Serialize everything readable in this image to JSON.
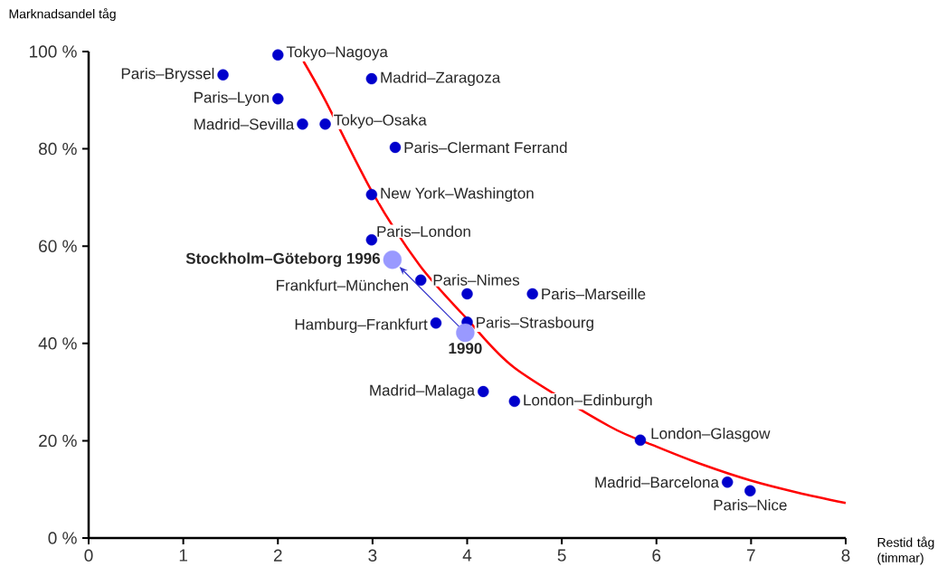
{
  "chart_data": {
    "type": "scatter",
    "xlabel": "Restid tåg (timmar)",
    "ylabel": "Marknadsandel tåg",
    "xlim": [
      0,
      8
    ],
    "ylim": [
      0,
      100
    ],
    "xticks": [
      0,
      1,
      2,
      3,
      4,
      5,
      6,
      7,
      8
    ],
    "yticks": [
      {
        "value": 0,
        "label": "0 %"
      },
      {
        "value": 20,
        "label": "20 %"
      },
      {
        "value": 40,
        "label": "40 %"
      },
      {
        "value": 60,
        "label": "60 %"
      },
      {
        "value": 80,
        "label": "80 %"
      },
      {
        "value": 100,
        "label": "100 %"
      }
    ],
    "grid": false,
    "series": [
      {
        "color": "#0000cc",
        "marker": "circle",
        "x": [
          1.42,
          2.0,
          2.99,
          2.0,
          2.26,
          2.5,
          3.24,
          2.99,
          2.99,
          3.51,
          4.0,
          4.69,
          3.67,
          4.0,
          4.17,
          4.5,
          5.83,
          6.75,
          6.99
        ],
        "values": [
          95.2,
          99.3,
          94.4,
          90.3,
          85.1,
          85.1,
          80.3,
          70.6,
          61.3,
          53.0,
          50.2,
          50.2,
          44.2,
          44.4,
          30.1,
          28.1,
          20.1,
          11.5,
          9.7
        ]
      },
      {
        "color": "#9999ff",
        "marker": "circle",
        "x": [
          3.98,
          3.21
        ],
        "values": [
          42.2,
          57.2
        ]
      },
      {
        "type": "line",
        "color": "#ff0000",
        "line_style": "solid",
        "marker": "none",
        "x": [
          2.27,
          2.5,
          3.0,
          3.5,
          4.0,
          4.5,
          5.5,
          6.0,
          6.5,
          7.0,
          7.5,
          8.0
        ],
        "values": [
          98,
          90,
          71,
          56,
          45,
          35,
          23,
          18.8,
          15,
          11.8,
          9.3,
          7.2
        ]
      }
    ],
    "annotations": [
      {
        "text": "Paris–Bryssel",
        "x": 1.42,
        "y": 95.2
      },
      {
        "text": "Tokyo–Nagoya",
        "x": 2.0,
        "y": 99.3
      },
      {
        "text": "Madrid–Zaragoza",
        "x": 2.99,
        "y": 94.4
      },
      {
        "text": "Paris–Lyon",
        "x": 2.0,
        "y": 90.3
      },
      {
        "text": "Madrid–Sevilla",
        "x": 2.26,
        "y": 85.1
      },
      {
        "text": "Tokyo–Osaka",
        "x": 2.5,
        "y": 85.1
      },
      {
        "text": "Paris–Clermant Ferrand",
        "x": 3.24,
        "y": 80.3
      },
      {
        "text": "New York–Washington",
        "x": 2.99,
        "y": 70.6
      },
      {
        "text": "Paris–London",
        "x": 2.99,
        "y": 61.3
      },
      {
        "text": "Frankfurt–München",
        "x": 3.51,
        "y": 53.0
      },
      {
        "text": "Paris–Nimes",
        "x": 4.0,
        "y": 50.2
      },
      {
        "text": "Paris–Marseille",
        "x": 4.69,
        "y": 50.2
      },
      {
        "text": "Hamburg–Frankfurt",
        "x": 3.67,
        "y": 44.2
      },
      {
        "text": "Paris–Strasbourg",
        "x": 4.0,
        "y": 44.4
      },
      {
        "text": "Madrid–Malaga",
        "x": 4.17,
        "y": 30.1
      },
      {
        "text": "London–Edinburgh",
        "x": 4.5,
        "y": 28.1
      },
      {
        "text": "London–Glasgow",
        "x": 5.83,
        "y": 20.1
      },
      {
        "text": "Madrid–Barcelona",
        "x": 6.75,
        "y": 11.5
      },
      {
        "text": "Paris–Nice",
        "x": 6.99,
        "y": 9.7
      },
      {
        "text": "Stockholm–Göteborg 1996",
        "x": 3.21,
        "y": 57.2
      },
      {
        "text": "1990",
        "x": 3.98,
        "y": 42.2
      }
    ]
  }
}
